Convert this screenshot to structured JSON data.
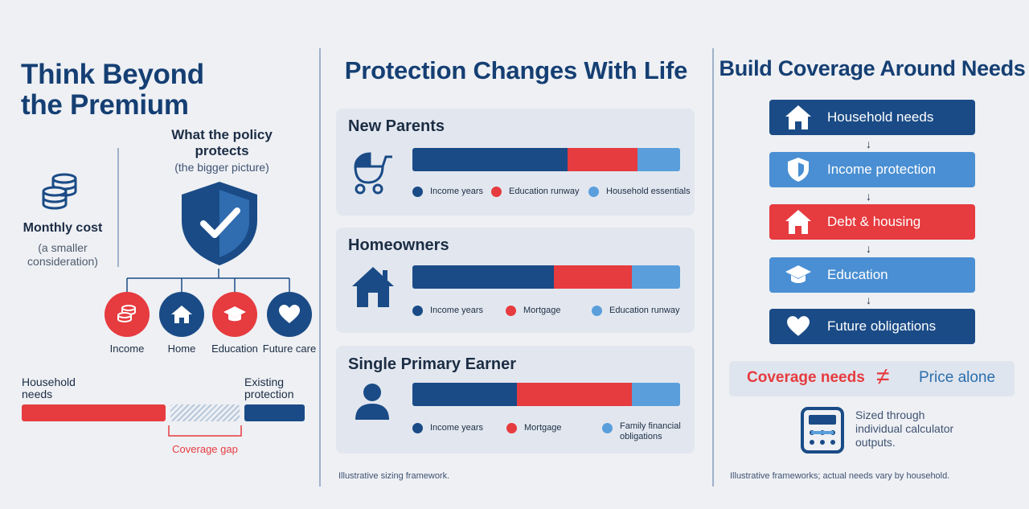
{
  "colors": {
    "navy": "#1a4b86",
    "red": "#e63b3f",
    "light_blue": "#5a9fdc",
    "mid_blue": "#4a8fd3",
    "background": "#eef0f4"
  },
  "left_panel": {
    "title_line1": "Think Beyond",
    "title_line2": "the Premium",
    "monthly_cost_label": "Monthly cost",
    "monthly_cost_sub1": "(a smaller",
    "monthly_cost_sub2": "consideration)",
    "policy_title_line1": "What the policy",
    "policy_title_line2": "protects",
    "policy_subtitle": "(the bigger picture)",
    "protects": [
      {
        "label": "Income",
        "icon": "coins-icon"
      },
      {
        "label": "Home",
        "icon": "home-icon"
      },
      {
        "label": "Education",
        "icon": "graduation-cap-icon"
      },
      {
        "label": "Future care",
        "icon": "heart-icon"
      }
    ],
    "gap": {
      "household_line1": "Household",
      "household_line2": "needs",
      "existing_line1": "Existing",
      "existing_line2": "protection",
      "gap_label": "Coverage gap"
    }
  },
  "middle_panel": {
    "title": "Protection Changes With Life",
    "cards": [
      {
        "title": "New Parents",
        "icon": "stroller-icon",
        "shares": [
          0.58,
          0.26,
          0.16
        ],
        "legend": [
          "Income years",
          "Education runway",
          "Household essentials"
        ]
      },
      {
        "title": "Homeowners",
        "icon": "house-icon",
        "shares": [
          0.53,
          0.29,
          0.18
        ],
        "legend": [
          "Income years",
          "Mortgage",
          "Education runway"
        ]
      },
      {
        "title": "Single Primary Earner",
        "icon": "person-icon",
        "shares": [
          0.39,
          0.43,
          0.18
        ],
        "legend": [
          "Income years",
          "Mortgage",
          "Family financial obligations"
        ],
        "legend_last_line1": "Family financial",
        "legend_last_line2": "obligations"
      }
    ],
    "footnote": "Illustrative sizing framework."
  },
  "right_panel": {
    "title": "Build Coverage Around Needs",
    "steps": [
      {
        "label": "Household needs",
        "icon": "house-icon",
        "color": "#1a4b86"
      },
      {
        "label": "Income protection",
        "icon": "shield-icon",
        "color": "#4a8fd3"
      },
      {
        "label": "Debt & housing",
        "icon": "house-icon",
        "color": "#e63b3f"
      },
      {
        "label": "Education",
        "icon": "graduation-cap-icon",
        "color": "#4a8fd3"
      },
      {
        "label": "Future obligations",
        "icon": "heart-icon",
        "color": "#1a4b86"
      }
    ],
    "arrow_glyph": "↓",
    "comparison": {
      "left": "Coverage needs",
      "symbol": "≠",
      "right": "Price alone"
    },
    "calc_line1": "Sized through",
    "calc_line2": "individual calculator",
    "calc_line3": "outputs.",
    "footnote": "Illustrative frameworks; actual needs vary by household."
  }
}
